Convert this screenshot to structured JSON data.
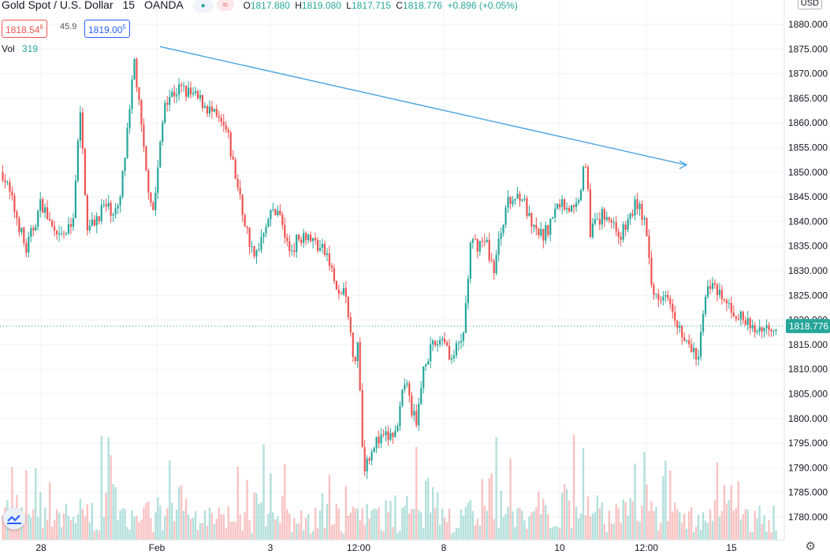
{
  "header": {
    "symbol_title": "Gold Spot / U.S. Dollar",
    "interval": "15",
    "source": "OANDA",
    "open_label": "O",
    "open_value": "1817.880",
    "high_label": "H",
    "high_value": "1819.080",
    "low_label": "L",
    "low_value": "1817.715",
    "close_label": "C",
    "close_value": "1818.776",
    "change": "+0.896 (+0.05%)",
    "sell_price": "1818.54",
    "sell_sup": "6",
    "spread": "45.9",
    "buy_price": "1819.00",
    "buy_sup": "5",
    "vol_label": "Vol",
    "vol_value": "319",
    "currency": "USD"
  },
  "colors": {
    "up": "#26a69a",
    "down": "#ef5350",
    "trendline": "#4aa3df",
    "grid": "#f0f3fa"
  },
  "icons": [
    "market-open-dot-icon",
    "indicator-wave-icon",
    "chart-settings-gear-icon",
    "tradingview-logo-icon"
  ],
  "chart_data": {
    "type": "candlestick",
    "title": "Gold Spot / U.S. Dollar, 15, OANDA",
    "y_ticks": [
      "1780.000",
      "1785.000",
      "1790.000",
      "1795.000",
      "1800.000",
      "1805.000",
      "1810.000",
      "1815.000",
      "1820.000",
      "1825.000",
      "1830.000",
      "1835.000",
      "1840.000",
      "1845.000",
      "1850.000",
      "1855.000",
      "1860.000",
      "1865.000",
      "1870.000",
      "1875.000",
      "1880.000"
    ],
    "ylim": [
      1779,
      1881
    ],
    "x_ticks": [
      "28",
      "Feb",
      "3",
      "12:00",
      "8",
      "10",
      "12:00",
      "15"
    ],
    "last_price": "1818.776",
    "last_price_value": 1818.776,
    "trendline": {
      "from": 1875.5,
      "to": 1851.5
    },
    "price_anchors": [
      [
        0,
        1850
      ],
      [
        0.02,
        1840
      ],
      [
        0.03,
        1834
      ],
      [
        0.05,
        1844
      ],
      [
        0.07,
        1836
      ],
      [
        0.09,
        1839
      ],
      [
        0.1,
        1862
      ],
      [
        0.11,
        1838
      ],
      [
        0.13,
        1843
      ],
      [
        0.15,
        1842
      ],
      [
        0.165,
        1863
      ],
      [
        0.17,
        1873
      ],
      [
        0.185,
        1850
      ],
      [
        0.195,
        1842
      ],
      [
        0.21,
        1865
      ],
      [
        0.23,
        1867
      ],
      [
        0.26,
        1864
      ],
      [
        0.29,
        1858
      ],
      [
        0.31,
        1842
      ],
      [
        0.325,
        1832
      ],
      [
        0.34,
        1840
      ],
      [
        0.355,
        1843
      ],
      [
        0.37,
        1834
      ],
      [
        0.39,
        1838
      ],
      [
        0.42,
        1833
      ],
      [
        0.435,
        1824
      ],
      [
        0.44,
        1827
      ],
      [
        0.455,
        1812
      ],
      [
        0.46,
        1815
      ],
      [
        0.466,
        1790
      ],
      [
        0.48,
        1795
      ],
      [
        0.51,
        1797
      ],
      [
        0.52,
        1808
      ],
      [
        0.535,
        1798
      ],
      [
        0.545,
        1812
      ],
      [
        0.57,
        1817
      ],
      [
        0.58,
        1812
      ],
      [
        0.595,
        1816
      ],
      [
        0.605,
        1835
      ],
      [
        0.625,
        1836
      ],
      [
        0.635,
        1830
      ],
      [
        0.65,
        1843
      ],
      [
        0.67,
        1846
      ],
      [
        0.685,
        1838
      ],
      [
        0.7,
        1837
      ],
      [
        0.72,
        1844
      ],
      [
        0.74,
        1842
      ],
      [
        0.755,
        1853
      ],
      [
        0.76,
        1838
      ],
      [
        0.78,
        1842
      ],
      [
        0.8,
        1837
      ],
      [
        0.82,
        1844
      ],
      [
        0.83,
        1840
      ],
      [
        0.84,
        1825
      ],
      [
        0.86,
        1826
      ],
      [
        0.88,
        1816
      ],
      [
        0.9,
        1812
      ],
      [
        0.91,
        1828
      ],
      [
        0.93,
        1824
      ],
      [
        0.95,
        1821
      ],
      [
        0.97,
        1818
      ],
      [
        1.0,
        1819
      ]
    ],
    "volume_hint": "volume bars along bottom, max ~190 px area"
  }
}
